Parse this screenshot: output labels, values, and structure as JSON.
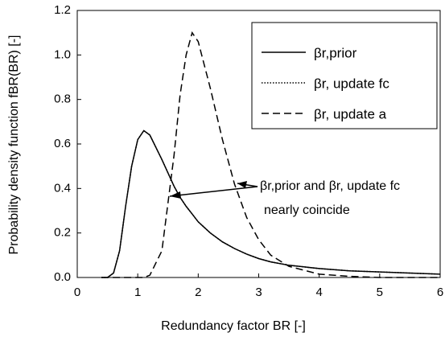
{
  "chart_data": {
    "type": "line",
    "x_label": "Redundancy factor BR [-]",
    "y_label": "Probability density function fBR(BR) [-]",
    "annotation": [
      "βr,prior and βr, update fc",
      "nearly coincide"
    ],
    "x": [
      0.4,
      0.5,
      0.6,
      0.7,
      0.8,
      0.9,
      1.0,
      1.1,
      1.2,
      1.4,
      1.6,
      1.7,
      1.8,
      1.9,
      2.0,
      2.2,
      2.4,
      2.6,
      2.8,
      3.0,
      3.2,
      3.5,
      4.0,
      4.5,
      5.0,
      5.5,
      6.0
    ],
    "series": [
      {
        "name": "βr,prior",
        "color": "#000000",
        "dash": "solid",
        "values": [
          0,
          0,
          0.02,
          0.12,
          0.32,
          0.5,
          0.62,
          0.66,
          0.64,
          0.53,
          0.41,
          0.36,
          0.32,
          0.285,
          0.25,
          0.2,
          0.16,
          0.13,
          0.105,
          0.085,
          0.07,
          0.055,
          0.04,
          0.03,
          0.025,
          0.02,
          0.015
        ]
      },
      {
        "name": "βr, update fc",
        "color": "#000000",
        "dash": "dotted",
        "values": [
          0,
          0,
          0.02,
          0.12,
          0.32,
          0.5,
          0.62,
          0.66,
          0.64,
          0.53,
          0.41,
          0.36,
          0.32,
          0.285,
          0.25,
          0.2,
          0.16,
          0.13,
          0.105,
          0.085,
          0.07,
          0.055,
          0.04,
          0.03,
          0.025,
          0.02,
          0.015
        ]
      },
      {
        "name": "βr, update a",
        "color": "#000000",
        "dash": "dashed",
        "values": [
          0,
          0,
          0,
          0,
          0,
          0,
          0,
          0,
          0.01,
          0.12,
          0.55,
          0.82,
          1.0,
          1.1,
          1.06,
          0.85,
          0.62,
          0.42,
          0.27,
          0.17,
          0.1,
          0.05,
          0.015,
          0.005,
          0,
          0,
          0
        ]
      }
    ],
    "xlim": [
      0,
      6
    ],
    "xticks": [
      0,
      1,
      2,
      3,
      4,
      5,
      6
    ],
    "ylim": [
      0,
      1.2
    ],
    "yticks": [
      {
        "value": 0,
        "label": "0.0"
      },
      0.2,
      0.4,
      0.6,
      0.8,
      {
        "value": 1,
        "label": "1.0"
      },
      1.2
    ],
    "grid": false,
    "legend": "upper right"
  }
}
